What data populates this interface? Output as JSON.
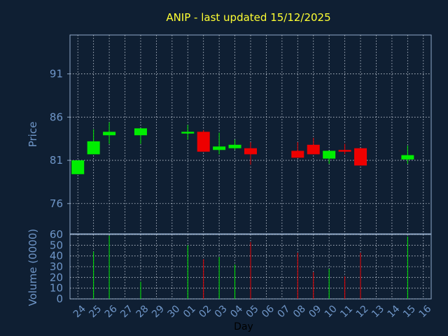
{
  "chart_data": [
    {
      "type": "candlestick",
      "title": "ANIP - last updated 15/12/2025",
      "ylabel": "Price",
      "ylim": [
        72.5,
        95.5
      ],
      "yticks": [
        76,
        81,
        86,
        91
      ],
      "grid": true,
      "categories": [
        "24",
        "25",
        "26",
        "27",
        "28",
        "29",
        "30",
        "01",
        "02",
        "03",
        "04",
        "05",
        "06",
        "07",
        "08",
        "09",
        "10",
        "11",
        "12",
        "13",
        "14",
        "15",
        "16"
      ],
      "candles": [
        {
          "day": "24",
          "open": 79.4,
          "close": 81.0,
          "high": 81.0,
          "low": 79.4,
          "direction": "up"
        },
        {
          "day": "25",
          "open": 81.7,
          "close": 83.2,
          "high": 84.6,
          "low": 81.7,
          "direction": "up"
        },
        {
          "day": "26",
          "open": 83.9,
          "close": 84.3,
          "high": 85.4,
          "low": 82.9,
          "direction": "up"
        },
        {
          "day": "28",
          "open": 83.9,
          "close": 84.7,
          "high": 84.7,
          "low": 82.9,
          "direction": "up"
        },
        {
          "day": "01",
          "open": 84.1,
          "close": 84.3,
          "high": 85.1,
          "low": 83.4,
          "direction": "up"
        },
        {
          "day": "02",
          "open": 84.3,
          "close": 82.0,
          "high": 84.5,
          "low": 82.0,
          "direction": "down"
        },
        {
          "day": "03",
          "open": 82.2,
          "close": 82.6,
          "high": 84.2,
          "low": 81.7,
          "direction": "up"
        },
        {
          "day": "04",
          "open": 82.4,
          "close": 82.8,
          "high": 83.4,
          "low": 82.2,
          "direction": "up"
        },
        {
          "day": "05",
          "open": 82.4,
          "close": 81.7,
          "high": 83.1,
          "low": 80.5,
          "direction": "down"
        },
        {
          "day": "08",
          "open": 82.1,
          "close": 81.3,
          "high": 83.1,
          "low": 81.3,
          "direction": "down"
        },
        {
          "day": "09",
          "open": 82.8,
          "close": 81.7,
          "high": 83.6,
          "low": 81.7,
          "direction": "down"
        },
        {
          "day": "10",
          "open": 81.2,
          "close": 82.1,
          "high": 82.1,
          "low": 80.6,
          "direction": "up"
        },
        {
          "day": "11",
          "open": 82.2,
          "close": 82.0,
          "high": 82.9,
          "low": 81.7,
          "direction": "down"
        },
        {
          "day": "12",
          "open": 82.4,
          "close": 80.4,
          "high": 82.4,
          "low": 80.4,
          "direction": "down"
        },
        {
          "day": "15",
          "open": 81.1,
          "close": 81.6,
          "high": 82.7,
          "low": 80.6,
          "direction": "up"
        }
      ]
    },
    {
      "type": "bar",
      "ylabel": "Volume (0000)",
      "xlabel": "Day",
      "ylim": [
        0,
        60
      ],
      "yticks": [
        0,
        10,
        20,
        30,
        40,
        50,
        60
      ],
      "grid": true,
      "series": [
        {
          "values": [
            {
              "day": "25",
              "value": 44,
              "direction": "up"
            },
            {
              "day": "26",
              "value": 59,
              "direction": "up"
            },
            {
              "day": "28",
              "value": 16,
              "direction": "up"
            },
            {
              "day": "01",
              "value": 50,
              "direction": "up"
            },
            {
              "day": "02",
              "value": 37,
              "direction": "down"
            },
            {
              "day": "03",
              "value": 39,
              "direction": "up"
            },
            {
              "day": "04",
              "value": 32,
              "direction": "up"
            },
            {
              "day": "05",
              "value": 53,
              "direction": "down"
            },
            {
              "day": "08",
              "value": 43,
              "direction": "down"
            },
            {
              "day": "09",
              "value": 25,
              "direction": "down"
            },
            {
              "day": "10",
              "value": 28,
              "direction": "up"
            },
            {
              "day": "11",
              "value": 21,
              "direction": "down"
            },
            {
              "day": "12",
              "value": 43,
              "direction": "down"
            },
            {
              "day": "15",
              "value": 58,
              "direction": "up"
            }
          ]
        }
      ]
    }
  ],
  "colors": {
    "background": "#0f1f33",
    "title": "#ffff33",
    "axis_text": "#6f96c8",
    "axis_line": "#8fa8c8",
    "grid": "#c8d0dc",
    "up": "#00ee00",
    "down": "#ee0000"
  }
}
